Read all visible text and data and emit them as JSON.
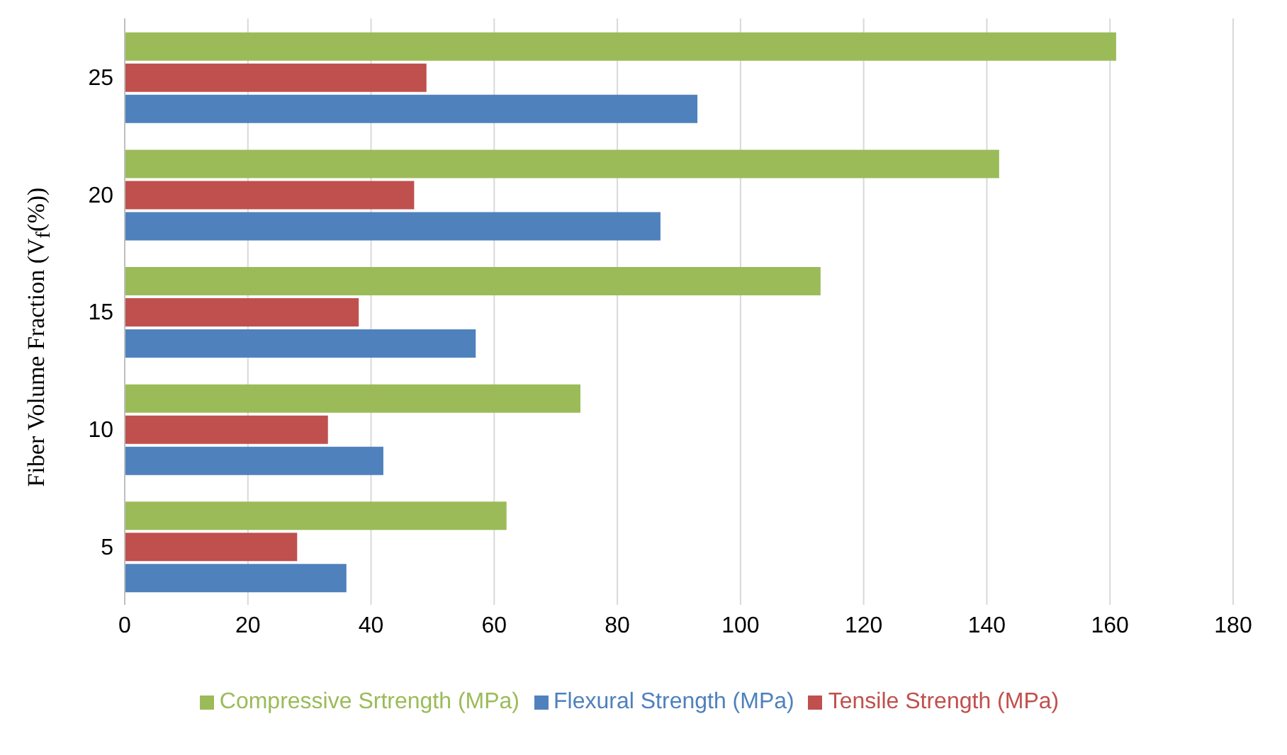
{
  "chart_data": {
    "type": "bar",
    "orientation": "horizontal",
    "ylabel": "Fiber Volume Fraction (V$_{f}$(%))",
    "categories": [
      "25",
      "20",
      "15",
      "10",
      "5"
    ],
    "series": [
      {
        "name": "Compressive Srtrength (MPa)",
        "color": "#9bbb59",
        "values": [
          161,
          142,
          113,
          74,
          62
        ]
      },
      {
        "name": "Tensile Strength (MPa)",
        "color": "#c0504d",
        "values": [
          49,
          47,
          38,
          33,
          28
        ]
      },
      {
        "name": "Flexural Strength (MPa)",
        "color": "#4f81bd",
        "values": [
          93,
          87,
          57,
          42,
          36
        ]
      }
    ],
    "xlim": [
      0,
      180
    ],
    "xticks": [
      0,
      20,
      40,
      60,
      80,
      100,
      120,
      140,
      160,
      180
    ],
    "grid": "x",
    "legend": "bottom"
  }
}
